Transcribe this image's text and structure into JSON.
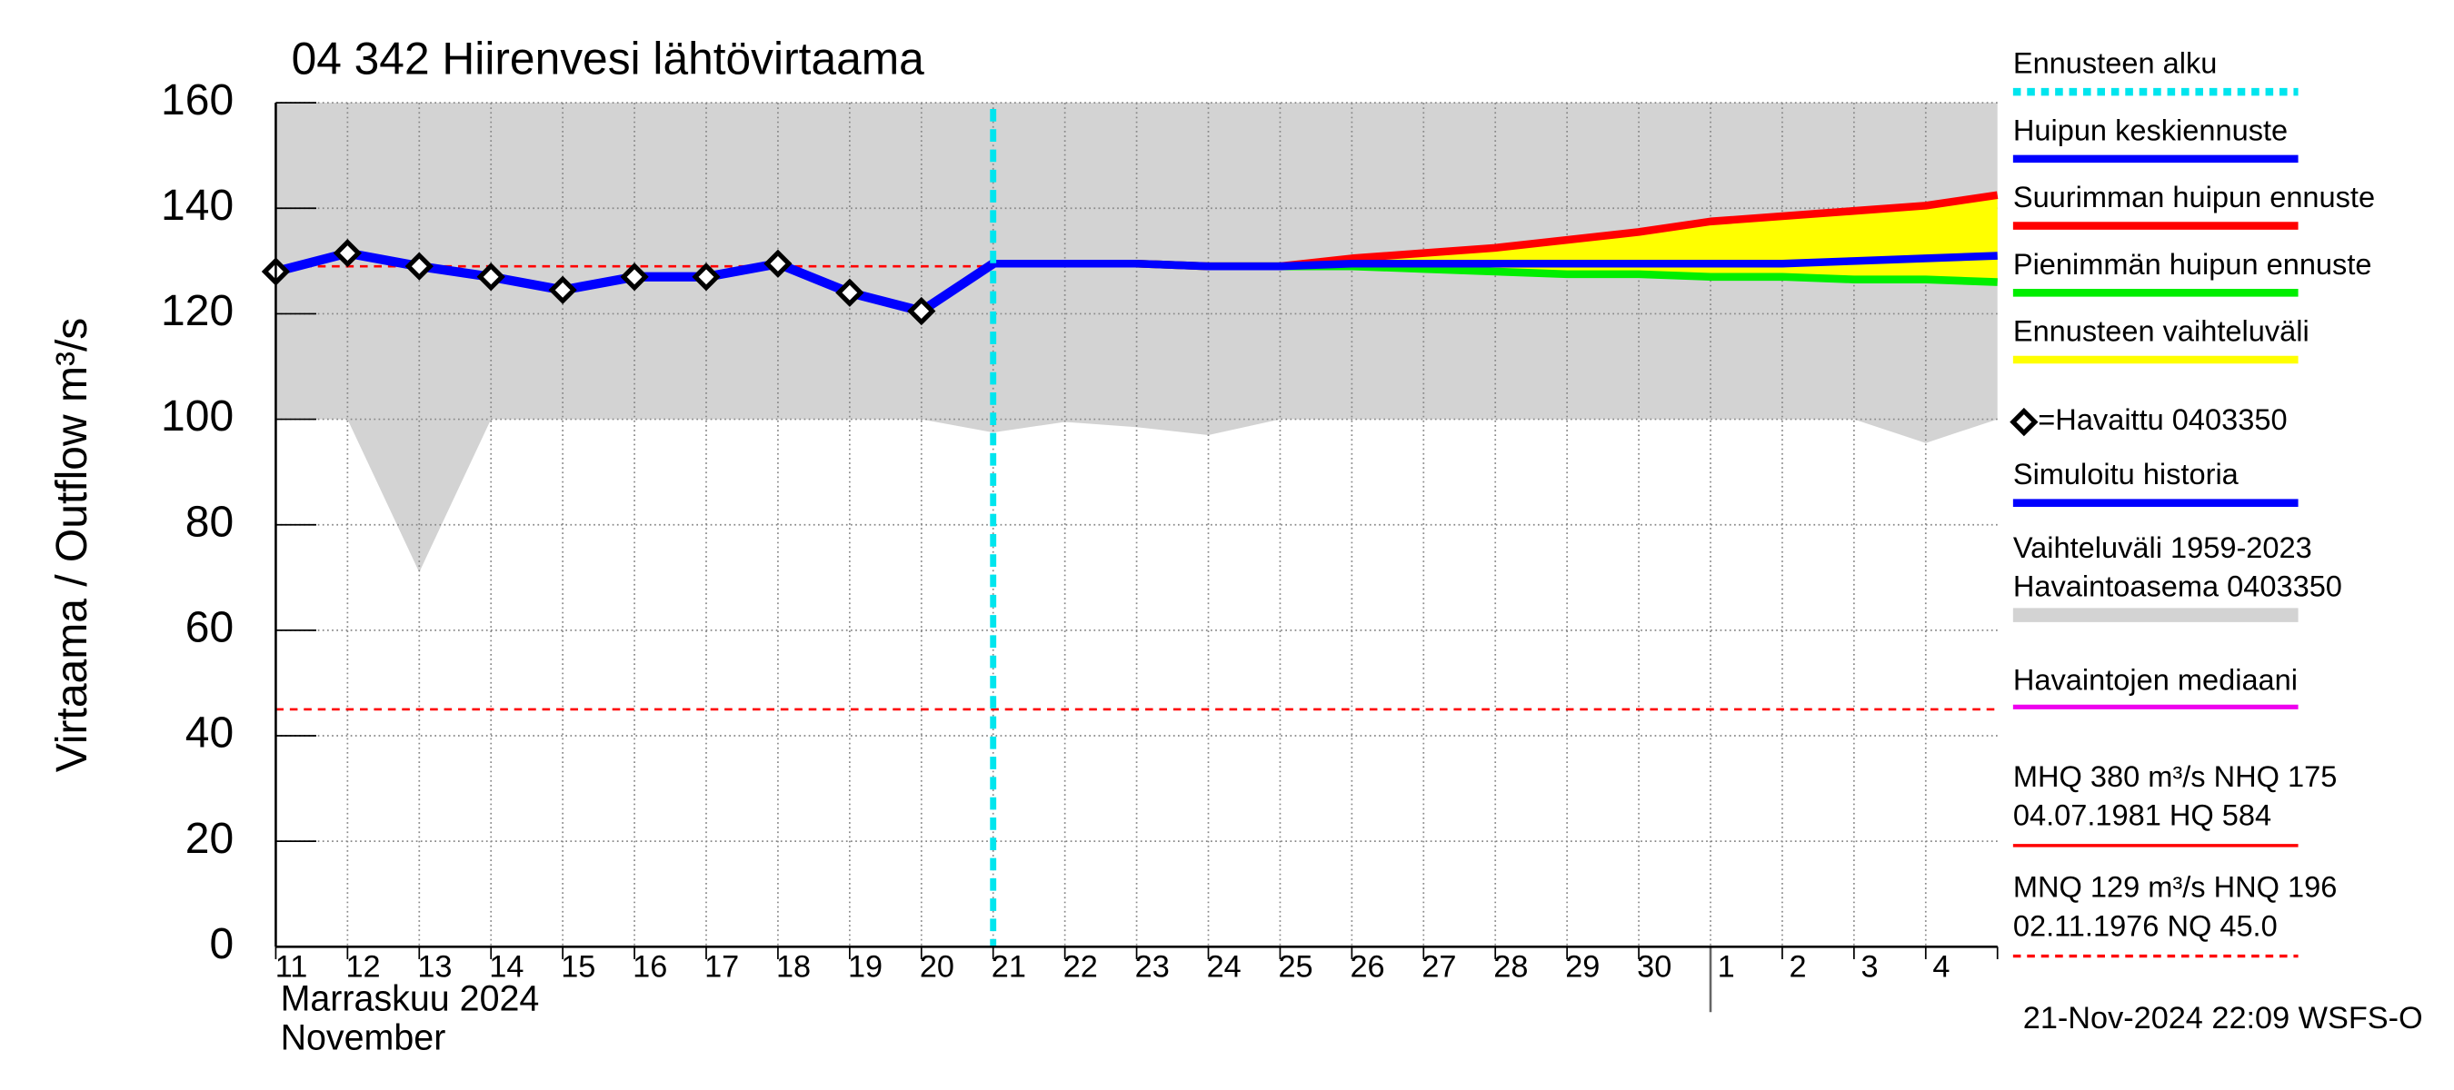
{
  "chart_data": {
    "type": "line",
    "title": "04 342 Hiirenvesi lähtövirtaama",
    "y_label": "Virtaama / Outflow    m³/s",
    "x_label": [
      "Marraskuu 2024",
      "November"
    ],
    "footer": "21-Nov-2024 22:09 WSFS-O",
    "categories": [
      "11",
      "12",
      "13",
      "14",
      "15",
      "16",
      "17",
      "18",
      "19",
      "20",
      "21",
      "22",
      "23",
      "24",
      "25",
      "26",
      "27",
      "28",
      "29",
      "30",
      "1",
      "2",
      "3",
      "4",
      null
    ],
    "month_start_index": 20,
    "ylim": [
      0,
      160
    ],
    "yticks": [
      0,
      20,
      40,
      60,
      80,
      100,
      120,
      140,
      160
    ],
    "grid": true,
    "forecast_start": {
      "name": "Ennusteen alku",
      "index": 10,
      "color": "#00e5ee"
    },
    "hist_range": {
      "name": [
        "Vaihteluväli 1959-2023",
        " Havaintoasema 0403350"
      ],
      "color": "#d3d3d3",
      "high": [
        160,
        160,
        160,
        160,
        160,
        160,
        160,
        160,
        160,
        160,
        160,
        160,
        160,
        160,
        160,
        160,
        160,
        160,
        160,
        160,
        160,
        160,
        160,
        160,
        160
      ],
      "low": [
        100,
        100,
        71,
        100,
        100,
        100,
        100,
        100,
        100,
        100,
        97.5,
        99.5,
        98.5,
        97,
        100,
        100,
        100,
        100,
        100,
        100,
        100,
        100,
        100,
        95.5,
        100
      ]
    },
    "band": {
      "name": "Ennusteen vaihteluväli",
      "color": "#ffff00"
    },
    "series": [
      {
        "name": "Huipun keskiennuste",
        "color": "#0000ff",
        "role": "mean",
        "values": [
          null,
          null,
          null,
          null,
          null,
          null,
          null,
          null,
          null,
          null,
          129.5,
          129.5,
          129.5,
          129,
          129,
          129.5,
          129.5,
          129.5,
          129.5,
          129.5,
          129.5,
          129.5,
          130,
          130.5,
          131
        ]
      },
      {
        "name": "Suurimman huipun ennuste",
        "color": "#ff0000",
        "role": "max",
        "values": [
          null,
          null,
          null,
          null,
          null,
          null,
          null,
          null,
          null,
          null,
          129.5,
          129.5,
          129.5,
          129,
          129,
          130.5,
          131.5,
          132.5,
          134,
          135.5,
          137.5,
          138.5,
          139.5,
          140.5,
          142.5
        ]
      },
      {
        "name": "Pienimmän huipun ennuste",
        "color": "#00ee00",
        "role": "min",
        "values": [
          null,
          null,
          null,
          null,
          null,
          null,
          null,
          null,
          null,
          null,
          129.5,
          129.5,
          129.5,
          129,
          129,
          129,
          128.5,
          128,
          127.5,
          127.5,
          127,
          127,
          126.5,
          126.5,
          126
        ]
      },
      {
        "name": "=Havaittu 0403350",
        "color": "#000000",
        "role": "observed",
        "values": [
          128,
          131.5,
          129,
          127,
          124.5,
          127,
          127,
          129.5,
          124,
          120.5,
          null,
          null,
          null,
          null,
          null,
          null,
          null,
          null,
          null,
          null,
          null,
          null,
          null,
          null,
          null
        ]
      },
      {
        "name": "Simuloitu historia",
        "color": "#0000ff",
        "role": "history",
        "values": [
          128,
          131.5,
          129,
          127,
          124.5,
          127,
          127,
          129.5,
          124,
          120.5,
          129.5,
          null,
          null,
          null,
          null,
          null,
          null,
          null,
          null,
          null,
          null,
          null,
          null,
          null,
          null
        ]
      }
    ],
    "median": {
      "name": "Havaintojen mediaani",
      "color": "#ee00ee"
    },
    "stats": [
      {
        "lines": [
          "MHQ  380 m³/s NHQ  175",
          "04.07.1981 HQ  584"
        ],
        "color": "#ff0000",
        "dashed": false,
        "values": []
      },
      {
        "lines": [
          "MNQ  129 m³/s HNQ  196",
          "02.11.1976 NQ 45.0"
        ],
        "color": "#ff0000",
        "dashed": true,
        "values": [
          129,
          45
        ]
      }
    ]
  }
}
